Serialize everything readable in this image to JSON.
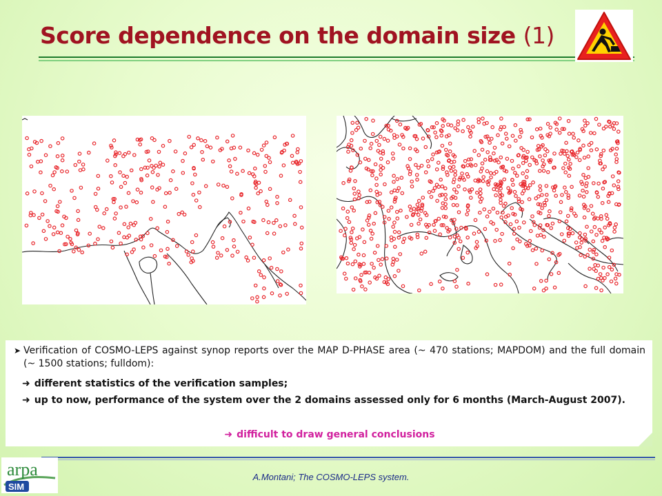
{
  "slide": {
    "title_main": "Score dependence on the domain size",
    "title_num": "(1)"
  },
  "icons": {
    "warning": "road-works-warning-sign",
    "logo": "arpa-sim-logo"
  },
  "maps": {
    "left": {
      "name": "MAPDOM",
      "stations": 470
    },
    "right": {
      "name": "fulldom",
      "stations": 1500
    },
    "marker_color": "#e8252a"
  },
  "text": {
    "bullet1": "Verification of COSMO-LEPS against synop reports over the MAP D-PHASE area (~ 470 stations; MAPDOM) and the full domain (~ 1500 stations; fulldom):",
    "bullet2": "different statistics of the verification samples;",
    "bullet3": "up to now, performance of the system over the 2 domains assessed only for 6 months (March-August 2007).",
    "conclusion": "difficult to draw general conclusions"
  },
  "footer": {
    "logo_text_top": "arpa",
    "logo_text_bottom": "SIM",
    "credit": "A.Montani; The COSMO-LEPS system."
  },
  "colors": {
    "title": "#a01321",
    "accent_magenta": "#d1209e",
    "footer_text": "#1a2a88"
  }
}
